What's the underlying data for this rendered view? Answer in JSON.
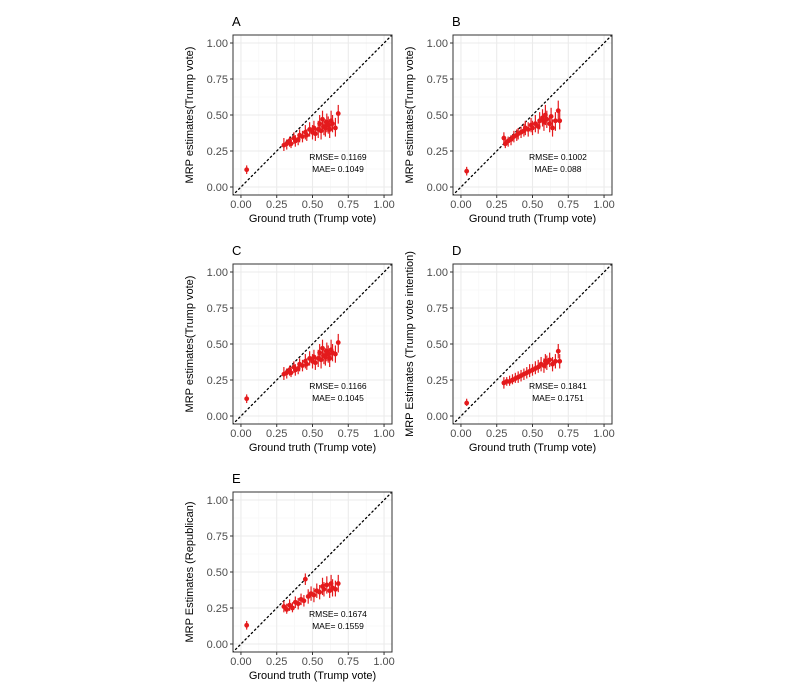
{
  "colors": {
    "point": "#e41a1c",
    "grid_major": "#ebebeb",
    "grid_minor": "#f5f5f5",
    "frame": "#333333",
    "tick_text": "#4d4d4d",
    "diagonal": "#000000"
  },
  "chart_data": [
    {
      "type": "scatter",
      "panel_label": "A",
      "xlabel": "Ground truth (Trump vote)",
      "ylabel": "MRP estimates(Trump vote)",
      "xlim": [
        0,
        1
      ],
      "ylim": [
        0,
        1
      ],
      "xticks": [
        "0.00",
        "0.25",
        "0.50",
        "0.75",
        "1.00"
      ],
      "yticks": [
        "0.00",
        "0.25",
        "0.50",
        "0.75",
        "1.00"
      ],
      "grid": true,
      "reference_line": "y = x (dotted)",
      "annotation": [
        "RMSE= 0.1169",
        "MAE= 0.1049"
      ],
      "points": [
        {
          "x": 0.04,
          "y": 0.12,
          "lo": 0.09,
          "hi": 0.15
        },
        {
          "x": 0.3,
          "y": 0.29,
          "lo": 0.25,
          "hi": 0.34
        },
        {
          "x": 0.32,
          "y": 0.3,
          "lo": 0.26,
          "hi": 0.33
        },
        {
          "x": 0.34,
          "y": 0.32,
          "lo": 0.28,
          "hi": 0.35
        },
        {
          "x": 0.35,
          "y": 0.3,
          "lo": 0.27,
          "hi": 0.34
        },
        {
          "x": 0.37,
          "y": 0.34,
          "lo": 0.3,
          "hi": 0.38
        },
        {
          "x": 0.38,
          "y": 0.32,
          "lo": 0.28,
          "hi": 0.36
        },
        {
          "x": 0.4,
          "y": 0.33,
          "lo": 0.29,
          "hi": 0.37
        },
        {
          "x": 0.41,
          "y": 0.36,
          "lo": 0.31,
          "hi": 0.4
        },
        {
          "x": 0.43,
          "y": 0.35,
          "lo": 0.31,
          "hi": 0.39
        },
        {
          "x": 0.45,
          "y": 0.38,
          "lo": 0.33,
          "hi": 0.43
        },
        {
          "x": 0.46,
          "y": 0.36,
          "lo": 0.32,
          "hi": 0.4
        },
        {
          "x": 0.48,
          "y": 0.4,
          "lo": 0.35,
          "hi": 0.45
        },
        {
          "x": 0.5,
          "y": 0.38,
          "lo": 0.33,
          "hi": 0.43
        },
        {
          "x": 0.51,
          "y": 0.41,
          "lo": 0.36,
          "hi": 0.46
        },
        {
          "x": 0.52,
          "y": 0.37,
          "lo": 0.32,
          "hi": 0.42
        },
        {
          "x": 0.54,
          "y": 0.4,
          "lo": 0.34,
          "hi": 0.46
        },
        {
          "x": 0.55,
          "y": 0.44,
          "lo": 0.38,
          "hi": 0.5
        },
        {
          "x": 0.56,
          "y": 0.39,
          "lo": 0.33,
          "hi": 0.45
        },
        {
          "x": 0.57,
          "y": 0.47,
          "lo": 0.4,
          "hi": 0.53
        },
        {
          "x": 0.58,
          "y": 0.42,
          "lo": 0.36,
          "hi": 0.48
        },
        {
          "x": 0.59,
          "y": 0.41,
          "lo": 0.35,
          "hi": 0.47
        },
        {
          "x": 0.6,
          "y": 0.45,
          "lo": 0.38,
          "hi": 0.51
        },
        {
          "x": 0.61,
          "y": 0.43,
          "lo": 0.37,
          "hi": 0.49
        },
        {
          "x": 0.62,
          "y": 0.4,
          "lo": 0.34,
          "hi": 0.46
        },
        {
          "x": 0.63,
          "y": 0.46,
          "lo": 0.39,
          "hi": 0.53
        },
        {
          "x": 0.64,
          "y": 0.44,
          "lo": 0.38,
          "hi": 0.5
        },
        {
          "x": 0.66,
          "y": 0.41,
          "lo": 0.35,
          "hi": 0.48
        },
        {
          "x": 0.68,
          "y": 0.51,
          "lo": 0.44,
          "hi": 0.57
        }
      ]
    },
    {
      "type": "scatter",
      "panel_label": "B",
      "xlabel": "Ground truth (Trump vote)",
      "ylabel": "MRP estimates(Trump vote)",
      "xlim": [
        0,
        1
      ],
      "ylim": [
        0,
        1
      ],
      "xticks": [
        "0.00",
        "0.25",
        "0.50",
        "0.75",
        "1.00"
      ],
      "yticks": [
        "0.00",
        "0.25",
        "0.50",
        "0.75",
        "1.00"
      ],
      "grid": true,
      "reference_line": "y = x (dotted)",
      "annotation": [
        "RMSE= 0.1002",
        "MAE= 0.088"
      ],
      "points": [
        {
          "x": 0.04,
          "y": 0.11,
          "lo": 0.08,
          "hi": 0.14
        },
        {
          "x": 0.3,
          "y": 0.34,
          "lo": 0.3,
          "hi": 0.38
        },
        {
          "x": 0.31,
          "y": 0.3,
          "lo": 0.27,
          "hi": 0.33
        },
        {
          "x": 0.33,
          "y": 0.32,
          "lo": 0.28,
          "hi": 0.35
        },
        {
          "x": 0.35,
          "y": 0.33,
          "lo": 0.29,
          "hi": 0.36
        },
        {
          "x": 0.37,
          "y": 0.35,
          "lo": 0.31,
          "hi": 0.39
        },
        {
          "x": 0.39,
          "y": 0.36,
          "lo": 0.32,
          "hi": 0.4
        },
        {
          "x": 0.4,
          "y": 0.37,
          "lo": 0.33,
          "hi": 0.41
        },
        {
          "x": 0.42,
          "y": 0.38,
          "lo": 0.34,
          "hi": 0.42
        },
        {
          "x": 0.44,
          "y": 0.39,
          "lo": 0.35,
          "hi": 0.44
        },
        {
          "x": 0.45,
          "y": 0.41,
          "lo": 0.36,
          "hi": 0.46
        },
        {
          "x": 0.47,
          "y": 0.4,
          "lo": 0.35,
          "hi": 0.45
        },
        {
          "x": 0.49,
          "y": 0.43,
          "lo": 0.38,
          "hi": 0.48
        },
        {
          "x": 0.5,
          "y": 0.41,
          "lo": 0.36,
          "hi": 0.46
        },
        {
          "x": 0.52,
          "y": 0.44,
          "lo": 0.38,
          "hi": 0.5
        },
        {
          "x": 0.54,
          "y": 0.42,
          "lo": 0.37,
          "hi": 0.47
        },
        {
          "x": 0.55,
          "y": 0.46,
          "lo": 0.4,
          "hi": 0.52
        },
        {
          "x": 0.57,
          "y": 0.48,
          "lo": 0.42,
          "hi": 0.54
        },
        {
          "x": 0.58,
          "y": 0.45,
          "lo": 0.39,
          "hi": 0.51
        },
        {
          "x": 0.59,
          "y": 0.5,
          "lo": 0.43,
          "hi": 0.57
        },
        {
          "x": 0.6,
          "y": 0.47,
          "lo": 0.41,
          "hi": 0.53
        },
        {
          "x": 0.62,
          "y": 0.44,
          "lo": 0.38,
          "hi": 0.5
        },
        {
          "x": 0.63,
          "y": 0.49,
          "lo": 0.42,
          "hi": 0.55
        },
        {
          "x": 0.64,
          "y": 0.41,
          "lo": 0.35,
          "hi": 0.47
        },
        {
          "x": 0.66,
          "y": 0.46,
          "lo": 0.39,
          "hi": 0.52
        },
        {
          "x": 0.68,
          "y": 0.53,
          "lo": 0.46,
          "hi": 0.6
        },
        {
          "x": 0.69,
          "y": 0.46,
          "lo": 0.4,
          "hi": 0.52
        }
      ]
    },
    {
      "type": "scatter",
      "panel_label": "C",
      "xlabel": "Ground truth (Trump vote)",
      "ylabel": "MRP estimates(Trump vote)",
      "xlim": [
        0,
        1
      ],
      "ylim": [
        0,
        1
      ],
      "xticks": [
        "0.00",
        "0.25",
        "0.50",
        "0.75",
        "1.00"
      ],
      "yticks": [
        "0.00",
        "0.25",
        "0.50",
        "0.75",
        "1.00"
      ],
      "grid": true,
      "reference_line": "y = x (dotted)",
      "annotation": [
        "RMSE= 0.1166",
        "MAE= 0.1045"
      ],
      "points": [
        {
          "x": 0.04,
          "y": 0.12,
          "lo": 0.09,
          "hi": 0.15
        },
        {
          "x": 0.3,
          "y": 0.29,
          "lo": 0.25,
          "hi": 0.34
        },
        {
          "x": 0.32,
          "y": 0.3,
          "lo": 0.26,
          "hi": 0.33
        },
        {
          "x": 0.34,
          "y": 0.32,
          "lo": 0.28,
          "hi": 0.35
        },
        {
          "x": 0.35,
          "y": 0.3,
          "lo": 0.27,
          "hi": 0.34
        },
        {
          "x": 0.37,
          "y": 0.34,
          "lo": 0.3,
          "hi": 0.38
        },
        {
          "x": 0.38,
          "y": 0.32,
          "lo": 0.28,
          "hi": 0.36
        },
        {
          "x": 0.4,
          "y": 0.33,
          "lo": 0.29,
          "hi": 0.37
        },
        {
          "x": 0.41,
          "y": 0.36,
          "lo": 0.31,
          "hi": 0.4
        },
        {
          "x": 0.43,
          "y": 0.35,
          "lo": 0.31,
          "hi": 0.39
        },
        {
          "x": 0.45,
          "y": 0.38,
          "lo": 0.33,
          "hi": 0.43
        },
        {
          "x": 0.46,
          "y": 0.36,
          "lo": 0.32,
          "hi": 0.4
        },
        {
          "x": 0.48,
          "y": 0.4,
          "lo": 0.35,
          "hi": 0.45
        },
        {
          "x": 0.5,
          "y": 0.38,
          "lo": 0.33,
          "hi": 0.43
        },
        {
          "x": 0.51,
          "y": 0.41,
          "lo": 0.36,
          "hi": 0.46
        },
        {
          "x": 0.52,
          "y": 0.37,
          "lo": 0.32,
          "hi": 0.42
        },
        {
          "x": 0.54,
          "y": 0.4,
          "lo": 0.34,
          "hi": 0.46
        },
        {
          "x": 0.55,
          "y": 0.44,
          "lo": 0.38,
          "hi": 0.5
        },
        {
          "x": 0.56,
          "y": 0.39,
          "lo": 0.33,
          "hi": 0.45
        },
        {
          "x": 0.57,
          "y": 0.47,
          "lo": 0.4,
          "hi": 0.53
        },
        {
          "x": 0.58,
          "y": 0.42,
          "lo": 0.36,
          "hi": 0.48
        },
        {
          "x": 0.59,
          "y": 0.41,
          "lo": 0.35,
          "hi": 0.47
        },
        {
          "x": 0.6,
          "y": 0.45,
          "lo": 0.38,
          "hi": 0.51
        },
        {
          "x": 0.61,
          "y": 0.43,
          "lo": 0.37,
          "hi": 0.49
        },
        {
          "x": 0.62,
          "y": 0.4,
          "lo": 0.34,
          "hi": 0.46
        },
        {
          "x": 0.63,
          "y": 0.46,
          "lo": 0.39,
          "hi": 0.53
        },
        {
          "x": 0.64,
          "y": 0.44,
          "lo": 0.38,
          "hi": 0.5
        },
        {
          "x": 0.66,
          "y": 0.43,
          "lo": 0.37,
          "hi": 0.49
        },
        {
          "x": 0.68,
          "y": 0.51,
          "lo": 0.44,
          "hi": 0.57
        }
      ]
    },
    {
      "type": "scatter",
      "panel_label": "D",
      "xlabel": "Ground truth (Trump vote)",
      "ylabel": "MRP Estimates (Trump vote intention)",
      "xlim": [
        0,
        1
      ],
      "ylim": [
        0,
        1
      ],
      "xticks": [
        "0.00",
        "0.25",
        "0.50",
        "0.75",
        "1.00"
      ],
      "yticks": [
        "0.00",
        "0.25",
        "0.50",
        "0.75",
        "1.00"
      ],
      "grid": true,
      "reference_line": "y = x (dotted)",
      "annotation": [
        "RMSE= 0.1841",
        "MAE= 0.1751"
      ],
      "points": [
        {
          "x": 0.04,
          "y": 0.09,
          "lo": 0.07,
          "hi": 0.12
        },
        {
          "x": 0.3,
          "y": 0.23,
          "lo": 0.19,
          "hi": 0.27
        },
        {
          "x": 0.32,
          "y": 0.24,
          "lo": 0.21,
          "hi": 0.27
        },
        {
          "x": 0.34,
          "y": 0.24,
          "lo": 0.21,
          "hi": 0.28
        },
        {
          "x": 0.36,
          "y": 0.25,
          "lo": 0.22,
          "hi": 0.29
        },
        {
          "x": 0.38,
          "y": 0.26,
          "lo": 0.23,
          "hi": 0.3
        },
        {
          "x": 0.4,
          "y": 0.27,
          "lo": 0.23,
          "hi": 0.31
        },
        {
          "x": 0.42,
          "y": 0.28,
          "lo": 0.24,
          "hi": 0.32
        },
        {
          "x": 0.44,
          "y": 0.29,
          "lo": 0.25,
          "hi": 0.33
        },
        {
          "x": 0.46,
          "y": 0.3,
          "lo": 0.26,
          "hi": 0.34
        },
        {
          "x": 0.48,
          "y": 0.31,
          "lo": 0.27,
          "hi": 0.36
        },
        {
          "x": 0.5,
          "y": 0.32,
          "lo": 0.28,
          "hi": 0.36
        },
        {
          "x": 0.52,
          "y": 0.33,
          "lo": 0.29,
          "hi": 0.38
        },
        {
          "x": 0.54,
          "y": 0.34,
          "lo": 0.3,
          "hi": 0.39
        },
        {
          "x": 0.56,
          "y": 0.36,
          "lo": 0.31,
          "hi": 0.41
        },
        {
          "x": 0.58,
          "y": 0.35,
          "lo": 0.3,
          "hi": 0.4
        },
        {
          "x": 0.59,
          "y": 0.38,
          "lo": 0.33,
          "hi": 0.43
        },
        {
          "x": 0.6,
          "y": 0.37,
          "lo": 0.32,
          "hi": 0.42
        },
        {
          "x": 0.62,
          "y": 0.39,
          "lo": 0.34,
          "hi": 0.44
        },
        {
          "x": 0.64,
          "y": 0.36,
          "lo": 0.31,
          "hi": 0.41
        },
        {
          "x": 0.66,
          "y": 0.38,
          "lo": 0.33,
          "hi": 0.43
        },
        {
          "x": 0.68,
          "y": 0.45,
          "lo": 0.4,
          "hi": 0.5
        },
        {
          "x": 0.69,
          "y": 0.38,
          "lo": 0.33,
          "hi": 0.43
        }
      ]
    },
    {
      "type": "scatter",
      "panel_label": "E",
      "xlabel": "Ground truth (Trump vote)",
      "ylabel": "MRP Estimates (Republican)",
      "xlim": [
        0,
        1
      ],
      "ylim": [
        0,
        1
      ],
      "xticks": [
        "0.00",
        "0.25",
        "0.50",
        "0.75",
        "1.00"
      ],
      "yticks": [
        "0.00",
        "0.25",
        "0.50",
        "0.75",
        "1.00"
      ],
      "grid": true,
      "reference_line": "y = x (dotted)",
      "annotation": [
        "RMSE= 0.1674",
        "MAE= 0.1559"
      ],
      "points": [
        {
          "x": 0.04,
          "y": 0.13,
          "lo": 0.1,
          "hi": 0.16
        },
        {
          "x": 0.3,
          "y": 0.26,
          "lo": 0.22,
          "hi": 0.3
        },
        {
          "x": 0.32,
          "y": 0.24,
          "lo": 0.21,
          "hi": 0.28
        },
        {
          "x": 0.34,
          "y": 0.27,
          "lo": 0.23,
          "hi": 0.31
        },
        {
          "x": 0.36,
          "y": 0.25,
          "lo": 0.22,
          "hi": 0.29
        },
        {
          "x": 0.38,
          "y": 0.29,
          "lo": 0.25,
          "hi": 0.33
        },
        {
          "x": 0.4,
          "y": 0.28,
          "lo": 0.24,
          "hi": 0.32
        },
        {
          "x": 0.42,
          "y": 0.31,
          "lo": 0.27,
          "hi": 0.35
        },
        {
          "x": 0.44,
          "y": 0.3,
          "lo": 0.26,
          "hi": 0.34
        },
        {
          "x": 0.45,
          "y": 0.45,
          "lo": 0.41,
          "hi": 0.49
        },
        {
          "x": 0.47,
          "y": 0.33,
          "lo": 0.28,
          "hi": 0.38
        },
        {
          "x": 0.49,
          "y": 0.35,
          "lo": 0.3,
          "hi": 0.4
        },
        {
          "x": 0.51,
          "y": 0.34,
          "lo": 0.29,
          "hi": 0.39
        },
        {
          "x": 0.53,
          "y": 0.37,
          "lo": 0.32,
          "hi": 0.42
        },
        {
          "x": 0.55,
          "y": 0.36,
          "lo": 0.31,
          "hi": 0.41
        },
        {
          "x": 0.57,
          "y": 0.4,
          "lo": 0.34,
          "hi": 0.46
        },
        {
          "x": 0.58,
          "y": 0.38,
          "lo": 0.33,
          "hi": 0.43
        },
        {
          "x": 0.6,
          "y": 0.41,
          "lo": 0.35,
          "hi": 0.47
        },
        {
          "x": 0.62,
          "y": 0.37,
          "lo": 0.32,
          "hi": 0.43
        },
        {
          "x": 0.63,
          "y": 0.42,
          "lo": 0.36,
          "hi": 0.48
        },
        {
          "x": 0.64,
          "y": 0.39,
          "lo": 0.33,
          "hi": 0.45
        },
        {
          "x": 0.66,
          "y": 0.38,
          "lo": 0.33,
          "hi": 0.44
        },
        {
          "x": 0.68,
          "y": 0.42,
          "lo": 0.36,
          "hi": 0.48
        }
      ]
    }
  ]
}
